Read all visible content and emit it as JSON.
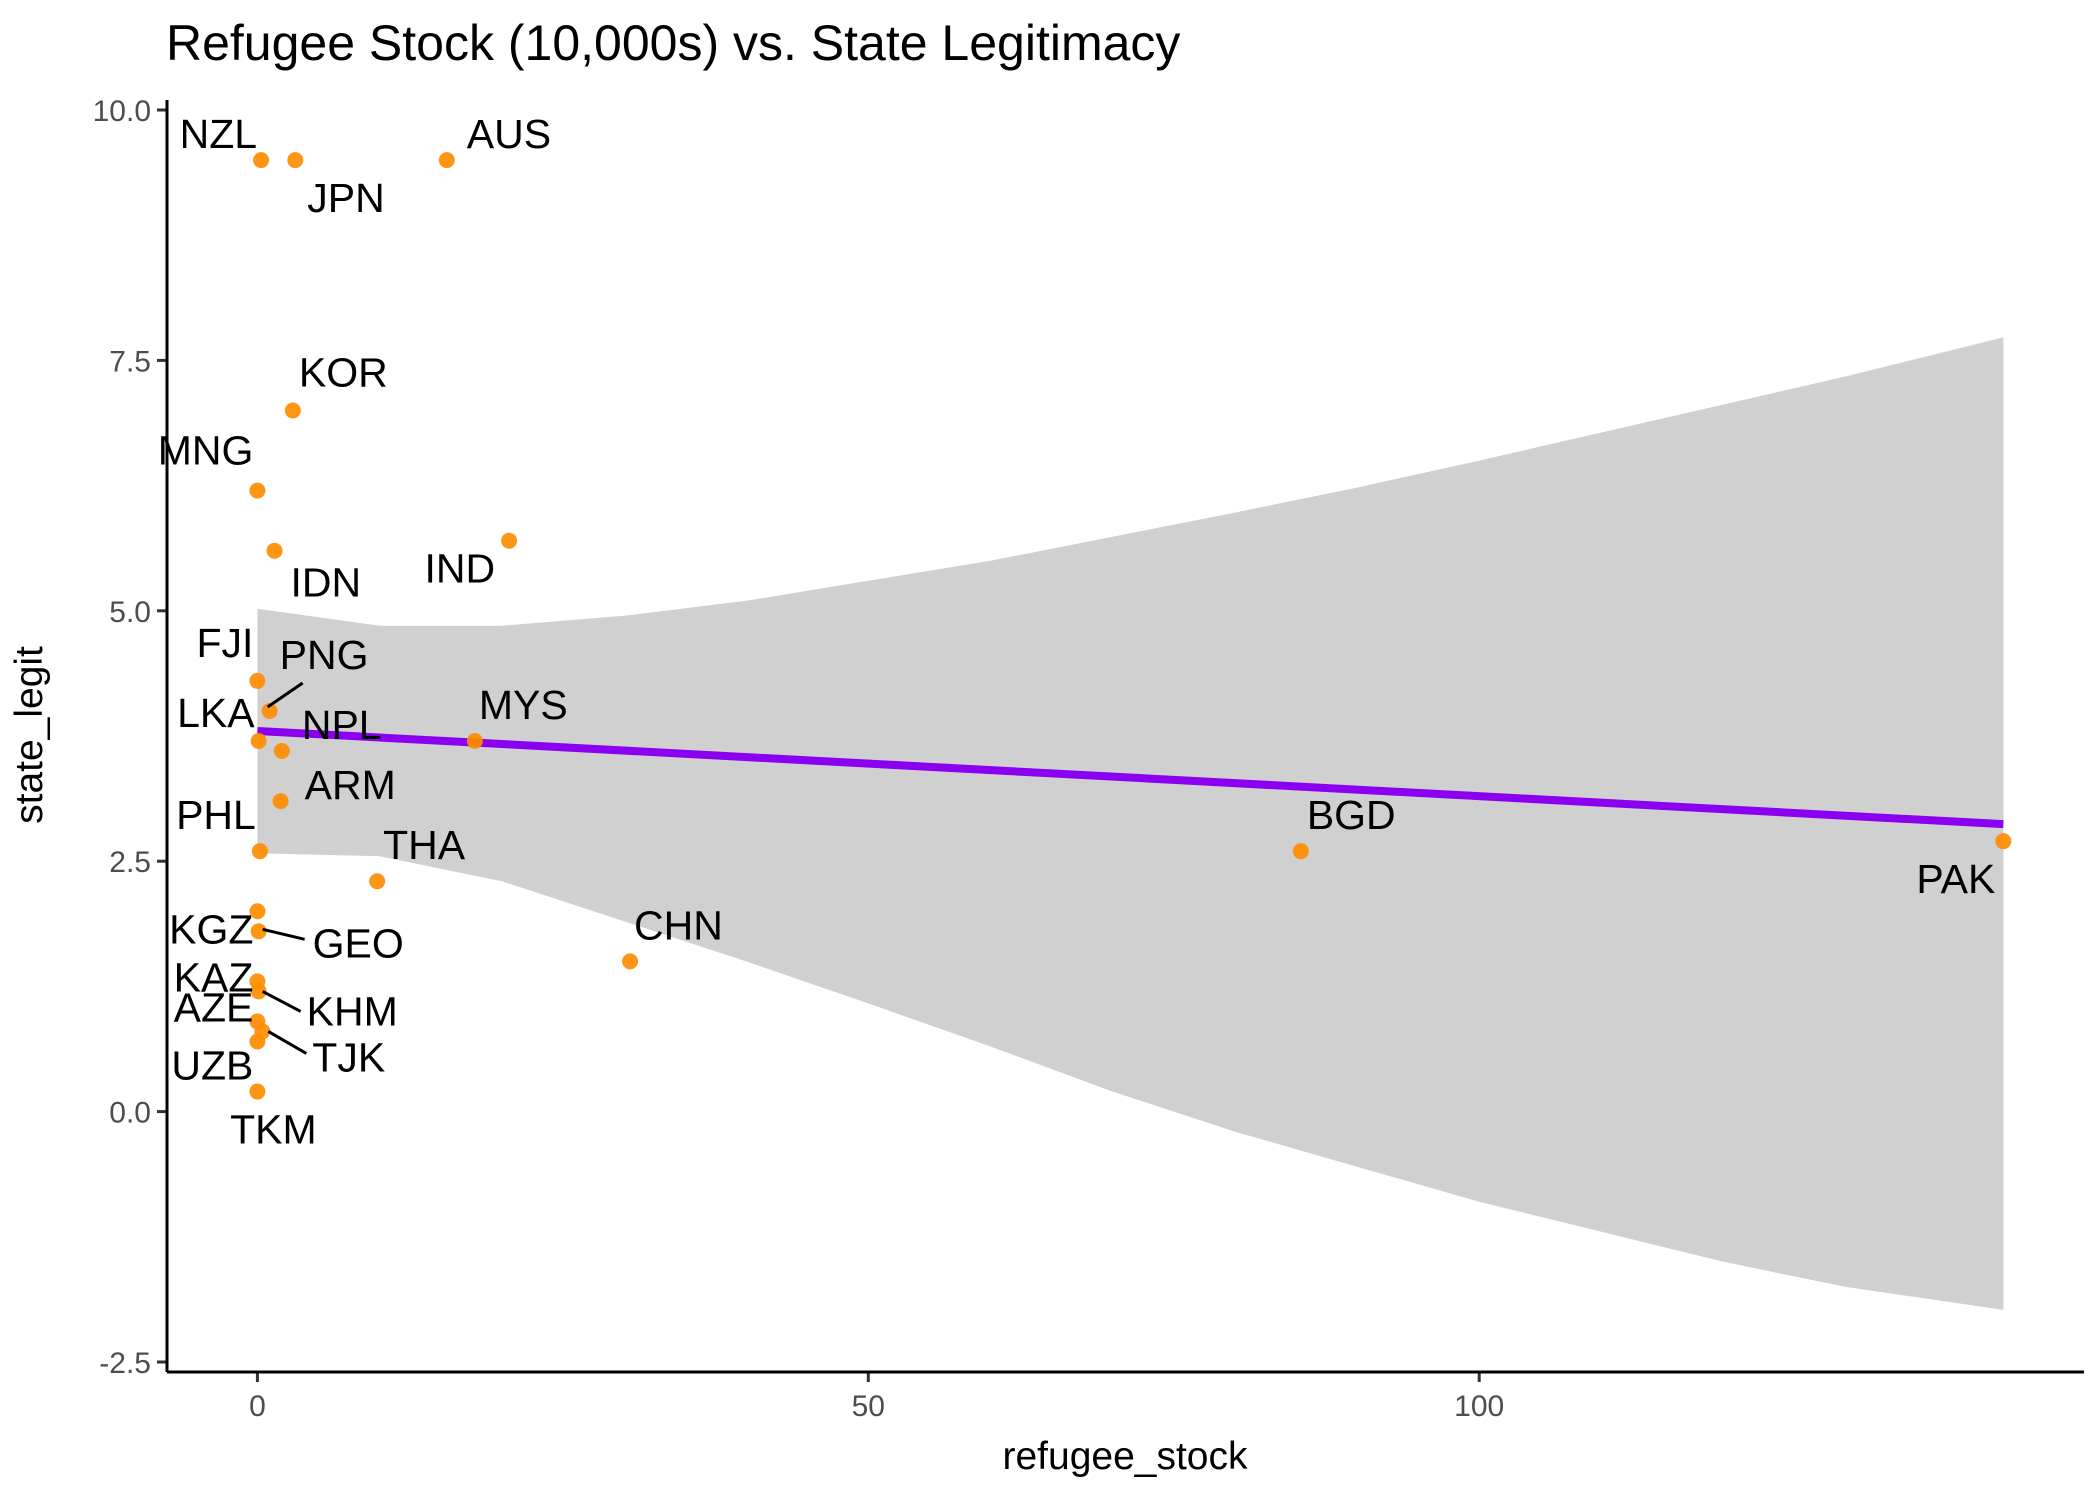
{
  "chart_data": {
    "type": "scatter",
    "title": "Refugee Stock (10,000s) vs. State Legitimacy",
    "xlabel": "refugee_stock",
    "ylabel": "state_legit",
    "xlim": [
      -7.4,
      149.5
    ],
    "ylim": [
      -2.6,
      10.1
    ],
    "x_ticks": [
      0,
      50,
      100
    ],
    "x_tick_labels": [
      "0",
      "50",
      "100"
    ],
    "y_ticks": [
      -2.5,
      0,
      2.5,
      5,
      7.5,
      10
    ],
    "y_tick_labels": [
      "-2.5",
      "0.0",
      "2.5",
      "5.0",
      "7.5",
      "10.0"
    ],
    "grid": false,
    "point_color": "#ff8c00",
    "trend_color": "#8b00ee",
    "band_color": "#bebebe",
    "points": [
      {
        "label": "NZL",
        "x": 0.3,
        "y": 9.5
      },
      {
        "label": "JPN",
        "x": 3.1,
        "y": 9.5
      },
      {
        "label": "AUS",
        "x": 15.5,
        "y": 9.5
      },
      {
        "label": "KOR",
        "x": 2.9,
        "y": 7.0
      },
      {
        "label": "MNG",
        "x": 0.0,
        "y": 6.2
      },
      {
        "label": "IDN",
        "x": 1.4,
        "y": 5.6
      },
      {
        "label": "IND",
        "x": 20.6,
        "y": 5.7
      },
      {
        "label": "FJI",
        "x": 0.0,
        "y": 4.3
      },
      {
        "label": "PNG",
        "x": 1.0,
        "y": 4.0
      },
      {
        "label": "LKA",
        "x": 0.1,
        "y": 3.7
      },
      {
        "label": "NPL",
        "x": 2.0,
        "y": 3.6
      },
      {
        "label": "MYS",
        "x": 17.8,
        "y": 3.7
      },
      {
        "label": "ARM",
        "x": 1.9,
        "y": 3.1
      },
      {
        "label": "PHL",
        "x": 0.2,
        "y": 2.6
      },
      {
        "label": "THA",
        "x": 9.8,
        "y": 2.3
      },
      {
        "label": "BGD",
        "x": 85.4,
        "y": 2.6
      },
      {
        "label": "PAK",
        "x": 142.9,
        "y": 2.7
      },
      {
        "label": "KGZ",
        "x": 0.0,
        "y": 2.0
      },
      {
        "label": "GEO",
        "x": 0.1,
        "y": 1.8
      },
      {
        "label": "CHN",
        "x": 30.5,
        "y": 1.5
      },
      {
        "label": "KAZ",
        "x": 0.0,
        "y": 1.3
      },
      {
        "label": "KHM",
        "x": 0.1,
        "y": 1.2
      },
      {
        "label": "AZE",
        "x": 0.0,
        "y": 0.9
      },
      {
        "label": "TJK",
        "x": 0.4,
        "y": 0.8
      },
      {
        "label": "UZB",
        "x": 0.0,
        "y": 0.7
      },
      {
        "label": "TKM",
        "x": 0.0,
        "y": 0.2
      }
    ],
    "trend_line": {
      "x": [
        0,
        142.9
      ],
      "y": [
        3.8,
        2.87
      ]
    },
    "confidence_band": {
      "x": [
        0,
        10,
        20,
        30,
        40,
        50,
        60,
        70,
        80,
        90,
        100,
        110,
        120,
        130,
        142.9
      ],
      "upper": [
        5.02,
        4.85,
        4.85,
        4.95,
        5.1,
        5.3,
        5.5,
        5.74,
        5.98,
        6.23,
        6.5,
        6.78,
        7.06,
        7.34,
        7.73
      ],
      "lower": [
        2.58,
        2.55,
        2.3,
        1.9,
        1.5,
        1.08,
        0.65,
        0.2,
        -0.2,
        -0.55,
        -0.9,
        -1.2,
        -1.5,
        -1.75,
        -1.98
      ]
    }
  }
}
